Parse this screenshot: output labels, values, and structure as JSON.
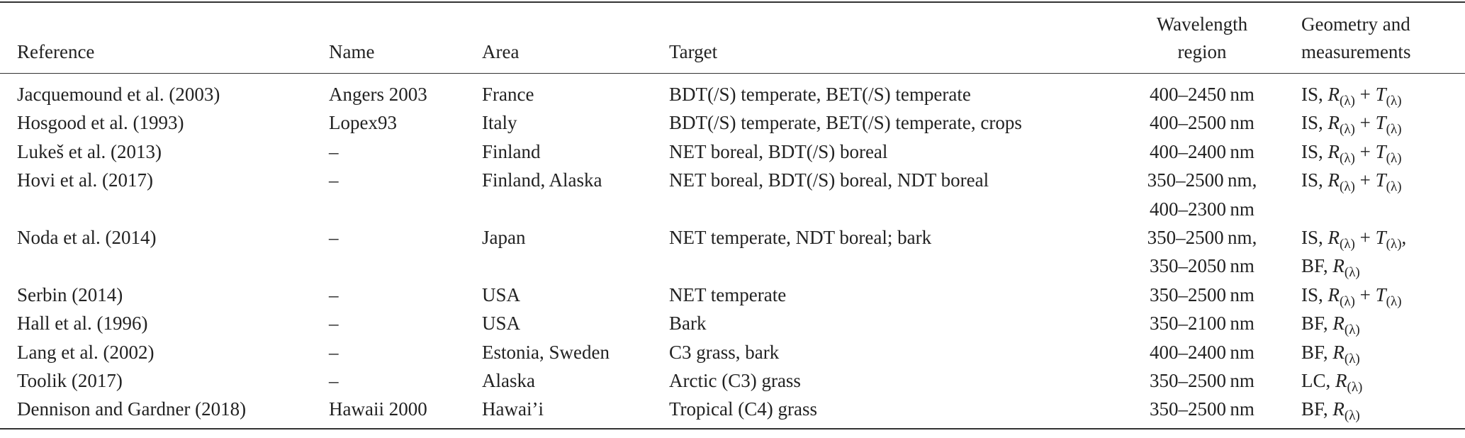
{
  "table": {
    "header": [
      "Reference",
      "Name",
      "Area",
      "Target",
      [
        "Wavelength",
        "region"
      ],
      [
        "Geometry and",
        "measurements"
      ]
    ],
    "rows": [
      [
        "Jacquemound et al. (2003)",
        "Angers 2003",
        "France",
        "BDT(/S) temperate, BET(/S) temperate",
        [
          "400–2450 nm"
        ],
        [
          "IS, R(λ) + T(λ)"
        ]
      ],
      [
        "Hosgood et al. (1993)",
        "Lopex93",
        "Italy",
        "BDT(/S) temperate, BET(/S) temperate, crops",
        [
          "400–2500 nm"
        ],
        [
          "IS, R(λ) + T(λ)"
        ]
      ],
      [
        "Lukeš et al. (2013)",
        "–",
        "Finland",
        "NET boreal, BDT(/S) boreal",
        [
          "400–2400 nm"
        ],
        [
          "IS, R(λ) + T(λ)"
        ]
      ],
      [
        "Hovi et al. (2017)",
        "–",
        "Finland, Alaska",
        "NET boreal, BDT(/S) boreal, NDT boreal",
        [
          "350–2500 nm,",
          "400–2300 nm"
        ],
        [
          "IS, R(λ) + T(λ)"
        ]
      ],
      [
        "Noda et al. (2014)",
        "–",
        "Japan",
        "NET temperate, NDT boreal; bark",
        [
          "350–2500 nm,",
          "350–2050 nm"
        ],
        [
          "IS, R(λ) + T(λ),",
          "BF, R(λ)"
        ]
      ],
      [
        "Serbin (2014)",
        "–",
        "USA",
        "NET temperate",
        [
          "350–2500 nm"
        ],
        [
          "IS, R(λ) + T(λ)"
        ]
      ],
      [
        "Hall et al. (1996)",
        "–",
        "USA",
        "Bark",
        [
          "350–2100 nm"
        ],
        [
          "BF, R(λ)"
        ]
      ],
      [
        "Lang et al. (2002)",
        "–",
        "Estonia, Sweden",
        "C3 grass, bark",
        [
          "400–2400 nm"
        ],
        [
          "BF, R(λ)"
        ]
      ],
      [
        "Toolik (2017)",
        "–",
        "Alaska",
        "Arctic (C3) grass",
        [
          "350–2500 nm"
        ],
        [
          "LC, R(λ)"
        ]
      ],
      [
        "Dennison and Gardner (2018)",
        "Hawaii 2000",
        "Hawai’i",
        "Tropical (C4) grass",
        [
          "350–2500 nm"
        ],
        [
          "BF, R(λ)"
        ]
      ]
    ]
  }
}
